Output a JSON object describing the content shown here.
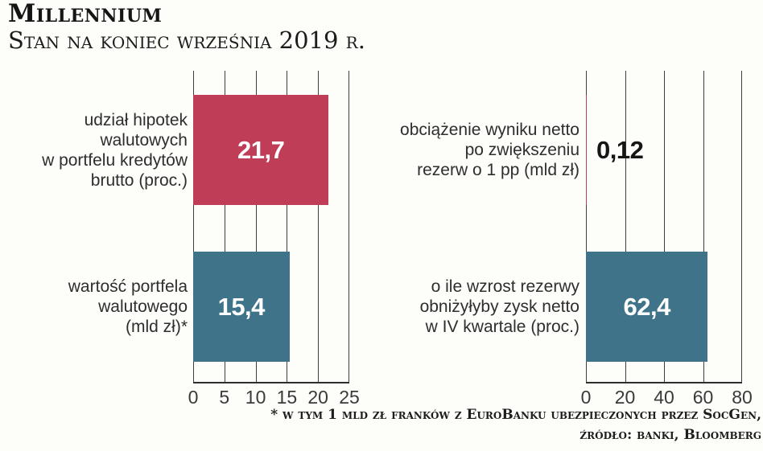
{
  "header": {
    "title": "Millennium",
    "subtitle": "Stan na koniec września 2019 r."
  },
  "footnote": {
    "line1": "* w tym 1 mld zł franków z EuroBanku ubezpieczonych przez SocGen,",
    "line2": "źródło: banki, Bloomberg"
  },
  "colors": {
    "bar_red": "#c03d58",
    "bar_teal": "#3f7389",
    "gridline": "#3f3f3f",
    "axis_line": "#2e2e2e",
    "value_label_light": "#ffffff",
    "value_label_dark": "#161616",
    "background": "#fdfdf9"
  },
  "chart_data": [
    {
      "type": "bar",
      "orientation": "horizontal",
      "title": "",
      "categories": [
        "udział hipotek walutowych w portfelu kredytów brutto (proc.)",
        "wartość portfela walutowego (mld zł)*"
      ],
      "category_lines": [
        [
          "udział hipotek",
          "walutowych",
          "w portfelu kredytów",
          "brutto (proc.)"
        ],
        [
          "wartość portfela",
          "walutowego",
          "(mld zł)*"
        ]
      ],
      "values": [
        21.7,
        15.4
      ],
      "value_labels": [
        "21,7",
        "15,4"
      ],
      "value_label_inside": [
        true,
        true
      ],
      "bar_colors": [
        "#c03d58",
        "#3f7389"
      ],
      "xlim": [
        0,
        25
      ],
      "xticks": [
        0,
        5,
        10,
        15,
        20,
        25
      ],
      "grid": true,
      "legend": "none"
    },
    {
      "type": "bar",
      "orientation": "horizontal",
      "title": "",
      "categories": [
        "obciążenie wyniku netto po zwiększeniu rezerw o 1 pp (mld zł)",
        "o ile wzrost rezerwy obniżyłyby zysk netto w IV kwartale (proc.)"
      ],
      "category_lines": [
        [
          "obciążenie wyniku netto",
          "po zwiększeniu",
          "rezerw o 1 pp (mld zł)"
        ],
        [
          "o ile wzrost rezerwy",
          "obniżyłyby zysk netto",
          "w IV kwartale (proc.)"
        ]
      ],
      "values": [
        0.12,
        62.4
      ],
      "value_labels": [
        "0,12",
        "62,4"
      ],
      "value_label_inside": [
        false,
        true
      ],
      "bar_colors": [
        "#c03d58",
        "#3f7389"
      ],
      "xlim": [
        0,
        80
      ],
      "xticks": [
        0,
        20,
        40,
        60,
        80
      ],
      "grid": true,
      "legend": "none"
    }
  ]
}
